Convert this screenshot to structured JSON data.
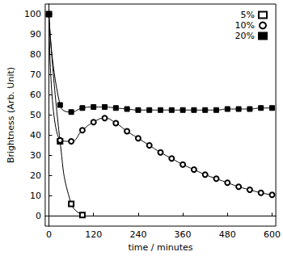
{
  "chart_data": {
    "type": "line",
    "x_label": "time / minutes",
    "y_label": "Brightness (Arb. Unit)",
    "x": [
      0,
      30,
      60,
      90,
      120,
      150,
      180,
      210,
      240,
      270,
      300,
      330,
      360,
      390,
      420,
      450,
      480,
      510,
      540,
      570,
      600
    ],
    "series": [
      {
        "name": "5%",
        "color": "#000000",
        "marker": "open_square",
        "values": [
          100,
          37,
          6,
          0.5,
          null,
          null,
          null,
          null,
          null,
          null,
          null,
          null,
          null,
          null,
          null,
          null,
          null,
          null,
          null,
          null,
          null
        ]
      },
      {
        "name": "10%",
        "color": "#000000",
        "marker": "open_circle",
        "values": [
          100,
          37.5,
          37,
          42.5,
          46.5,
          48.5,
          46,
          42,
          38.5,
          35,
          31.5,
          28.5,
          25.5,
          23,
          20.5,
          18.5,
          16.5,
          14.5,
          13,
          11.5,
          10.5
        ]
      },
      {
        "name": "20%",
        "color": "#000000",
        "marker": "filled_square",
        "values": [
          100,
          55,
          51.5,
          53.5,
          54,
          54,
          53.5,
          53,
          52.5,
          52.5,
          52.5,
          52.5,
          52.5,
          52.5,
          52.5,
          52.5,
          53,
          53,
          53,
          53.5,
          53.5
        ]
      }
    ],
    "xlim": [
      -10,
      610
    ],
    "xticks": [
      0,
      120,
      240,
      360,
      480,
      600
    ],
    "ylim": [
      -5,
      105
    ],
    "yticks": [
      0,
      10,
      20,
      30,
      40,
      50,
      60,
      70,
      80,
      90,
      100
    ],
    "grid": false,
    "legend": "upper right"
  }
}
